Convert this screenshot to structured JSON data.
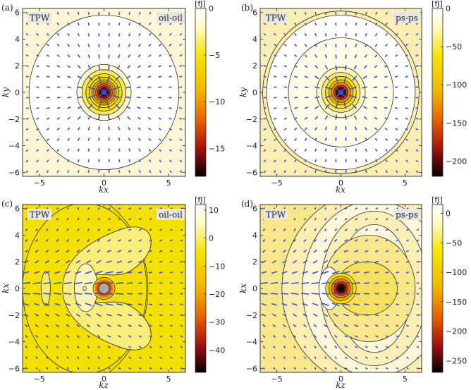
{
  "chart_data": [
    {
      "type": "heatmap",
      "panel_label": "(a)",
      "tag_left": "TPW",
      "tag_right": "oil-oil",
      "xlabel": "kx",
      "ylabel": "ky",
      "xlim": [
        -6.3,
        6.3
      ],
      "ylim": [
        -6.3,
        6.3
      ],
      "xticks": [
        -5,
        0,
        5
      ],
      "yticks": [
        -6,
        -4,
        -2,
        0,
        2,
        4,
        6
      ],
      "colorbar": {
        "unit": "[fJ]",
        "range": [
          -18,
          0
        ],
        "ticks": [
          0,
          -5,
          -10,
          -15
        ]
      },
      "field": "radial",
      "background": "#fdf6d4",
      "contour_radii": [
        5.8,
        2.1,
        1.7,
        1.4,
        1.15,
        0.95,
        0.8,
        0.65,
        0.5,
        0.38,
        0.27
      ]
    },
    {
      "type": "heatmap",
      "panel_label": "(b)",
      "tag_left": "TPW",
      "tag_right": "ps-ps",
      "xlabel": "kx",
      "ylabel": "ky",
      "xlim": [
        -6.3,
        6.3
      ],
      "ylim": [
        -6.3,
        6.3
      ],
      "xticks": [
        -5,
        0,
        5
      ],
      "yticks": [
        -6,
        -4,
        -2,
        0,
        2,
        4,
        6
      ],
      "colorbar": {
        "unit": "[fJ]",
        "range": [
          -220,
          0
        ],
        "ticks": [
          0,
          -50,
          -100,
          -150,
          -200
        ]
      },
      "field": "radial",
      "background": "#fbeeb2",
      "contour_radii": [
        6.1,
        5.8,
        4.1,
        1.9,
        1.5,
        1.2,
        0.95,
        0.75,
        0.55,
        0.4,
        0.28
      ]
    },
    {
      "type": "heatmap",
      "panel_label": "(c)",
      "tag_left": "TPW",
      "tag_right": "oil-oil",
      "xlabel": "kz",
      "ylabel": "kx",
      "xlim": [
        -6.3,
        6.3
      ],
      "ylim": [
        -6.3,
        6.3
      ],
      "xticks": [
        -5,
        0,
        5
      ],
      "yticks": [
        -6,
        -4,
        -2,
        0,
        2,
        4,
        6
      ],
      "colorbar": {
        "unit": "[fJ]",
        "range": [
          -48,
          12
        ],
        "ticks": [
          10,
          0,
          -10,
          -20,
          -30,
          -40
        ]
      },
      "field": "lobes",
      "background": "#f4e000"
    },
    {
      "type": "heatmap",
      "panel_label": "(d)",
      "tag_left": "TPW",
      "tag_right": "ps-ps",
      "xlabel": "kz",
      "ylabel": "kx",
      "xlim": [
        -6.3,
        6.3
      ],
      "ylim": [
        -6.3,
        6.3
      ],
      "xticks": [
        -5,
        0,
        5
      ],
      "yticks": [
        -6,
        -4,
        -2,
        0,
        2,
        4,
        6
      ],
      "colorbar": {
        "unit": "[fJ]",
        "range": [
          -270,
          15
        ],
        "ticks": [
          0,
          -50,
          -100,
          -150,
          -200,
          -250
        ]
      },
      "field": "lobes",
      "background": "#f8e68a"
    }
  ]
}
